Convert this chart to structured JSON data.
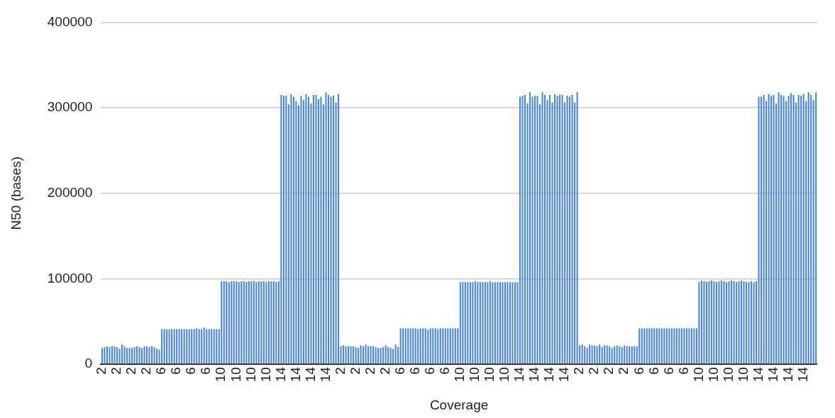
{
  "chart_data": {
    "type": "bar",
    "xlabel": "Coverage",
    "ylabel": "N50 (bases)",
    "categories": [
      "2",
      null,
      null,
      null,
      null,
      null,
      "2",
      null,
      null,
      null,
      null,
      null,
      "2",
      null,
      null,
      null,
      null,
      null,
      "2",
      null,
      null,
      null,
      null,
      null,
      "6",
      null,
      null,
      null,
      null,
      null,
      "6",
      null,
      null,
      null,
      null,
      null,
      "6",
      null,
      null,
      null,
      null,
      null,
      "6",
      null,
      null,
      null,
      null,
      null,
      "10",
      null,
      null,
      null,
      null,
      null,
      "10",
      null,
      null,
      null,
      null,
      null,
      "10",
      null,
      null,
      null,
      null,
      null,
      "10",
      null,
      null,
      null,
      null,
      null,
      "14",
      null,
      null,
      null,
      null,
      null,
      "14",
      null,
      null,
      null,
      null,
      null,
      "14",
      null,
      null,
      null,
      null,
      null,
      "14",
      null,
      null,
      null,
      null,
      null,
      "2",
      null,
      null,
      null,
      null,
      null,
      "2",
      null,
      null,
      null,
      null,
      null,
      "2",
      null,
      null,
      null,
      null,
      null,
      "2",
      null,
      null,
      null,
      null,
      null,
      "6",
      null,
      null,
      null,
      null,
      null,
      "6",
      null,
      null,
      null,
      null,
      null,
      "6",
      null,
      null,
      null,
      null,
      null,
      "6",
      null,
      null,
      null,
      null,
      null,
      "10",
      null,
      null,
      null,
      null,
      null,
      "10",
      null,
      null,
      null,
      null,
      null,
      "10",
      null,
      null,
      null,
      null,
      null,
      "10",
      null,
      null,
      null,
      null,
      null,
      "14",
      null,
      null,
      null,
      null,
      null,
      "14",
      null,
      null,
      null,
      null,
      null,
      "14",
      null,
      null,
      null,
      null,
      null,
      "14",
      null,
      null,
      null,
      null,
      null,
      "2",
      null,
      null,
      null,
      null,
      null,
      "2",
      null,
      null,
      null,
      null,
      null,
      "2",
      null,
      null,
      null,
      null,
      null,
      "2",
      null,
      null,
      null,
      null,
      null,
      "6",
      null,
      null,
      null,
      null,
      null,
      "6",
      null,
      null,
      null,
      null,
      null,
      "6",
      null,
      null,
      null,
      null,
      null,
      "6",
      null,
      null,
      null,
      null,
      null,
      "10",
      null,
      null,
      null,
      null,
      null,
      "10",
      null,
      null,
      null,
      null,
      null,
      "10",
      null,
      null,
      null,
      null,
      null,
      "10",
      null,
      null,
      null,
      null,
      null,
      "14",
      null,
      null,
      null,
      null,
      null,
      "14",
      null,
      null,
      null,
      null,
      null,
      "14",
      null,
      null,
      null,
      null,
      null,
      "14",
      null,
      null,
      null,
      null,
      null
    ],
    "values": [
      19000,
      20000,
      21000,
      20000,
      21000,
      21000,
      20000,
      18000,
      23000,
      21000,
      19000,
      19000,
      19000,
      20000,
      21000,
      20000,
      19000,
      21000,
      21000,
      20000,
      21000,
      20000,
      18000,
      17000,
      41000,
      41000,
      41000,
      41000,
      41000,
      41000,
      41000,
      41000,
      41000,
      41000,
      41000,
      41000,
      41000,
      41000,
      42000,
      41000,
      41000,
      43000,
      41000,
      41000,
      41000,
      41000,
      41000,
      41000,
      97000,
      97000,
      97000,
      96000,
      97000,
      97000,
      97000,
      96000,
      97000,
      97000,
      96000,
      97000,
      97000,
      97000,
      96000,
      97000,
      97000,
      97000,
      96000,
      97000,
      97000,
      97000,
      96000,
      97000,
      315000,
      314000,
      314000,
      304000,
      316000,
      313000,
      308000,
      303000,
      314000,
      309000,
      316000,
      313000,
      305000,
      315000,
      315000,
      310000,
      313000,
      304000,
      318000,
      315000,
      313000,
      314000,
      306000,
      316000,
      21000,
      22000,
      21000,
      21000,
      21000,
      21000,
      20000,
      19000,
      22000,
      21000,
      23000,
      21000,
      21000,
      21000,
      20000,
      19000,
      19000,
      20000,
      22000,
      20000,
      19000,
      18000,
      23000,
      20000,
      42000,
      42000,
      42000,
      42000,
      42000,
      42000,
      42000,
      41000,
      42000,
      42000,
      42000,
      40000,
      42000,
      42000,
      42000,
      41000,
      42000,
      42000,
      42000,
      42000,
      42000,
      42000,
      42000,
      42000,
      96000,
      96000,
      96000,
      96000,
      96000,
      96000,
      97000,
      96000,
      96000,
      96000,
      96000,
      96000,
      97000,
      96000,
      96000,
      96000,
      96000,
      96000,
      96000,
      96000,
      96000,
      96000,
      96000,
      96000,
      313000,
      314000,
      315000,
      305000,
      318000,
      313000,
      314000,
      314000,
      304000,
      318000,
      315000,
      309000,
      315000,
      306000,
      316000,
      314000,
      315000,
      315000,
      306000,
      314000,
      313000,
      315000,
      306000,
      318000,
      22000,
      23000,
      21000,
      19000,
      23000,
      22000,
      22000,
      21000,
      23000,
      20000,
      22000,
      22000,
      21000,
      19000,
      21000,
      22000,
      21000,
      20000,
      22000,
      21000,
      21000,
      21000,
      21000,
      21000,
      42000,
      42000,
      42000,
      42000,
      42000,
      42000,
      42000,
      42000,
      42000,
      42000,
      42000,
      42000,
      42000,
      42000,
      42000,
      42000,
      42000,
      42000,
      42000,
      42000,
      42000,
      42000,
      42000,
      42000,
      96000,
      98000,
      97000,
      96000,
      97000,
      98000,
      97000,
      96000,
      97000,
      98000,
      97000,
      96000,
      97000,
      98000,
      97000,
      96000,
      97000,
      98000,
      97000,
      96000,
      96000,
      97000,
      96000,
      97000,
      313000,
      313000,
      315000,
      308000,
      316000,
      314000,
      315000,
      305000,
      318000,
      315000,
      314000,
      308000,
      314000,
      317000,
      315000,
      306000,
      315000,
      314000,
      316000,
      308000,
      318000,
      315000,
      309000,
      318000
    ],
    "color": "#4a86e8",
    "ylim": [
      0,
      400000
    ],
    "yticks": [
      0,
      100000,
      200000,
      300000,
      400000
    ],
    "grid": "y",
    "legend": false
  }
}
